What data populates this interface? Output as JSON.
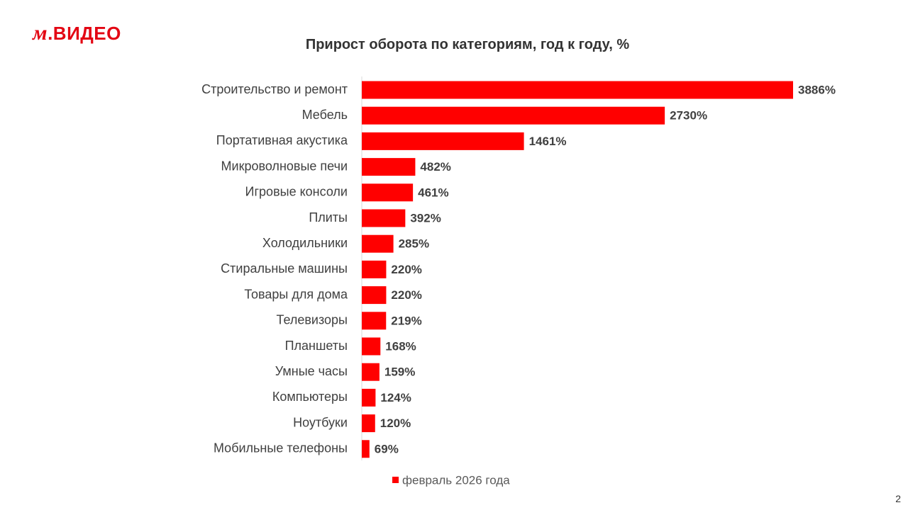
{
  "logo": {
    "text": "М.ВИДЕО",
    "m": "м",
    "rest": ".ВИДЕО"
  },
  "page_number": "2",
  "chart_data": {
    "type": "bar",
    "orientation": "horizontal",
    "title": "Прирост оборота по категориям, год к году, %",
    "categories": [
      "Строительство и ремонт",
      "Мебель",
      "Портативная акустика",
      "Микроволновые печи",
      "Игровые консоли",
      "Плиты",
      "Холодильники",
      "Стиральные машины",
      "Товары для дома",
      "Телевизоры",
      "Планшеты",
      "Умные часы",
      "Компьютеры",
      "Ноутбуки",
      "Мобильные телефоны"
    ],
    "series": [
      {
        "name": "февраль 2026 года",
        "values": [
          3886,
          2730,
          1461,
          482,
          461,
          392,
          285,
          220,
          220,
          219,
          168,
          159,
          124,
          120,
          69
        ],
        "color": "#ff0000"
      }
    ],
    "value_suffix": "%",
    "legend": "bottom",
    "grid": false
  }
}
